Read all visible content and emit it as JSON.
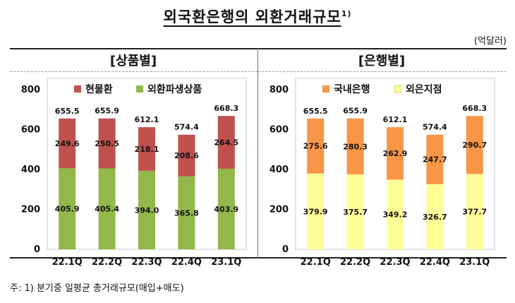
{
  "title": "외국환은행의 외환거래규모",
  "title_note": "1)",
  "unit": "(억달러)",
  "footnote": "주: 1) 분기중 일평균 총거래규모(매입+매도)",
  "chart_data": [
    {
      "type": "bar",
      "stacked": true,
      "panel_title": "[상품별]",
      "categories": [
        "22.1Q",
        "22.2Q",
        "22.3Q",
        "22.4Q",
        "23.1Q"
      ],
      "series": [
        {
          "name": "외환파생상품",
          "values": [
            405.9,
            405.4,
            394.0,
            365.8,
            403.9
          ],
          "color": "#92b84a"
        },
        {
          "name": "현물환",
          "values": [
            249.6,
            250.5,
            218.1,
            208.6,
            264.5
          ],
          "color": "#c0504d"
        }
      ],
      "totals": [
        655.5,
        655.9,
        612.1,
        574.4,
        668.3
      ],
      "total_labels": [
        "655.5",
        "655.9",
        "612.1",
        "574.4",
        "668.3"
      ],
      "value_labels": [
        [
          "405.9",
          "405.4",
          "394.0",
          "365.8",
          "403.9"
        ],
        [
          "249.6",
          "250.5",
          "218.1",
          "208.6",
          "264.5"
        ]
      ],
      "legend_order": [
        1,
        0
      ],
      "yticks": [
        "0",
        "200",
        "400",
        "600",
        "800"
      ],
      "ylim": [
        0,
        800
      ],
      "legend_position": "top"
    },
    {
      "type": "bar",
      "stacked": true,
      "panel_title": "[은행별]",
      "categories": [
        "22.1Q",
        "22.2Q",
        "22.3Q",
        "22.4Q",
        "23.1Q"
      ],
      "series": [
        {
          "name": "외은지점",
          "values": [
            379.9,
            375.7,
            349.2,
            326.7,
            377.7
          ],
          "color": "#ffff99"
        },
        {
          "name": "국내은행",
          "values": [
            275.6,
            280.3,
            262.9,
            247.7,
            290.7
          ],
          "color": "#f79646"
        }
      ],
      "totals": [
        655.5,
        655.9,
        612.1,
        574.4,
        668.3
      ],
      "total_labels": [
        "655.5",
        "655.9",
        "612.1",
        "574.4",
        "668.3"
      ],
      "value_labels": [
        [
          "379.9",
          "375.7",
          "349.2",
          "326.7",
          "377.7"
        ],
        [
          "275.6",
          "280.3",
          "262.9",
          "247.7",
          "290.7"
        ]
      ],
      "legend_order": [
        1,
        0
      ],
      "yticks": [
        "0",
        "200",
        "400",
        "600",
        "800"
      ],
      "ylim": [
        0,
        800
      ],
      "legend_position": "top"
    }
  ]
}
